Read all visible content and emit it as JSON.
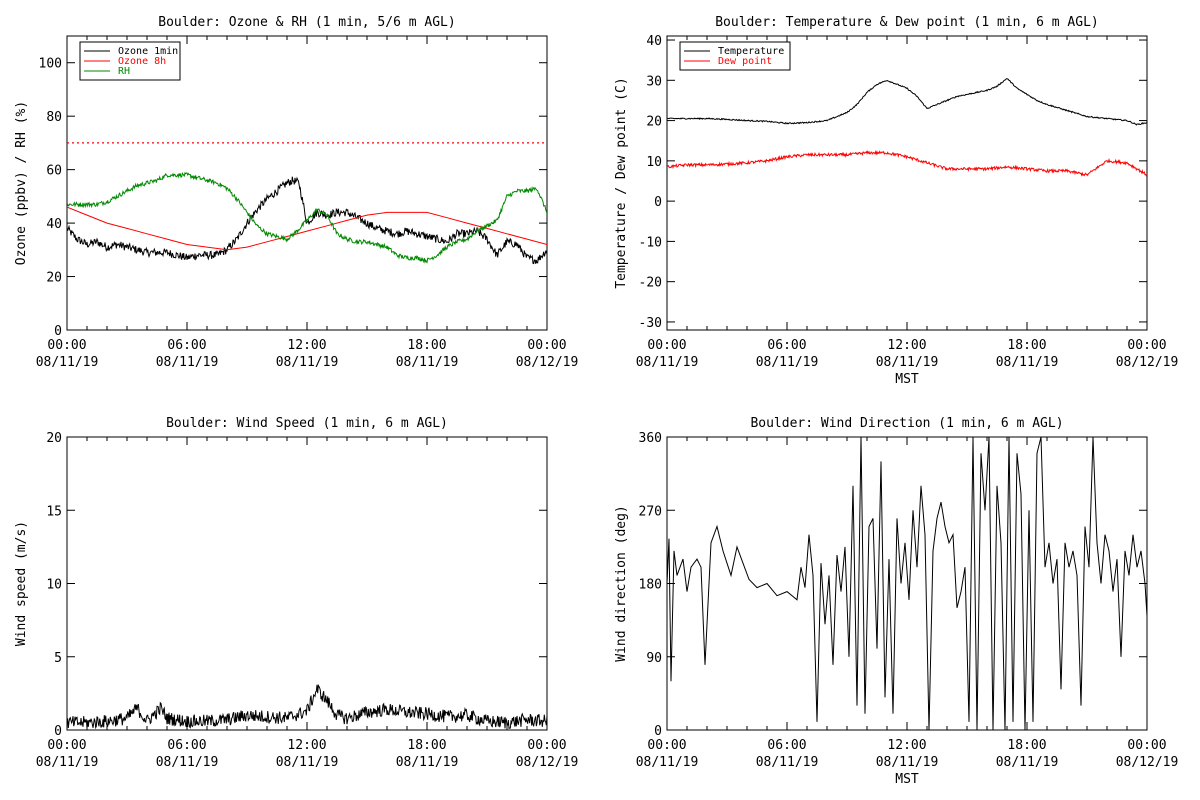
{
  "chart_data": [
    {
      "type": "line",
      "title": "Boulder: Ozone & RH (1 min, 5/6 m AGL)",
      "ylabel": "Ozone (ppbv) / RH (%)",
      "xlabel": "",
      "xlim": [
        0,
        24
      ],
      "ylim": [
        0,
        110
      ],
      "yticks": [
        0,
        20,
        40,
        60,
        80,
        100
      ],
      "xticks": [
        {
          "pos": 0,
          "time": "00:00",
          "date": "08/11/19"
        },
        {
          "pos": 6,
          "time": "06:00",
          "date": "08/11/19"
        },
        {
          "pos": 12,
          "time": "12:00",
          "date": "08/11/19"
        },
        {
          "pos": 18,
          "time": "18:00",
          "date": "08/11/19"
        },
        {
          "pos": 24,
          "time": "00:00",
          "date": "08/12/19"
        }
      ],
      "reference_line": {
        "y": 70,
        "color": "#ff0000",
        "style": "dotted"
      },
      "legend": {
        "placement": "top-left",
        "entries": [
          "Ozone 1min",
          "Ozone 8h",
          "RH"
        ]
      },
      "series": [
        {
          "name": "Ozone 1min",
          "color": "#000000",
          "noise": 1.5,
          "x": [
            0,
            0.5,
            1,
            1.5,
            2,
            2.5,
            3,
            3.5,
            4,
            4.5,
            5,
            5.5,
            6,
            6.5,
            7,
            7.5,
            8,
            8.5,
            9,
            9.5,
            10,
            10.5,
            11,
            11.3,
            11.6,
            12,
            12.5,
            13,
            13.5,
            14,
            14.5,
            15,
            15.5,
            16,
            16.5,
            17,
            17.5,
            18,
            18.5,
            19,
            19.5,
            20,
            20.5,
            21,
            21.5,
            22,
            22.5,
            23,
            23.5,
            24
          ],
          "y": [
            38,
            34,
            32,
            33,
            31,
            32,
            31,
            30,
            29,
            29,
            29,
            28,
            27,
            28,
            28,
            28,
            30,
            34,
            40,
            45,
            49,
            52,
            55,
            56,
            55,
            40,
            44,
            43,
            44,
            44,
            42,
            40,
            38,
            37,
            36,
            37,
            36,
            35,
            34,
            33,
            36,
            36,
            37,
            34,
            28,
            33,
            32,
            27,
            26,
            30
          ]
        },
        {
          "name": "Ozone 8h",
          "color": "#ff0000",
          "noise": 0,
          "x": [
            0,
            1,
            2,
            3,
            4,
            5,
            6,
            7,
            8,
            9,
            10,
            11,
            12,
            13,
            14,
            15,
            16,
            17,
            18,
            19,
            20,
            21,
            22,
            23,
            24
          ],
          "y": [
            46,
            43,
            40,
            38,
            36,
            34,
            32,
            31,
            30,
            31,
            33,
            35,
            37,
            39,
            41,
            43,
            44,
            44,
            44,
            42,
            40,
            38,
            36,
            34,
            32
          ]
        },
        {
          "name": "RH",
          "color": "#008800",
          "noise": 0.8,
          "x": [
            0,
            0.5,
            1,
            1.5,
            2,
            2.5,
            3,
            3.5,
            4,
            4.5,
            5,
            5.5,
            6,
            6.5,
            7,
            7.5,
            8,
            8.5,
            9,
            9.5,
            10,
            10.5,
            11,
            11.5,
            12,
            12.5,
            13,
            13.5,
            14,
            14.5,
            15,
            15.5,
            16,
            16.5,
            17,
            17.5,
            18,
            18.5,
            19,
            19.5,
            20,
            20.5,
            21,
            21.5,
            22,
            22.5,
            23,
            23.5,
            24
          ],
          "y": [
            47,
            47,
            47,
            47,
            48,
            50,
            52,
            54,
            55,
            56,
            58,
            58,
            58,
            57,
            56,
            55,
            53,
            49,
            44,
            39,
            36,
            35,
            34,
            37,
            41,
            45,
            43,
            36,
            34,
            33,
            33,
            32,
            31,
            28,
            27,
            27,
            26,
            28,
            31,
            33,
            34,
            37,
            39,
            41,
            50,
            52,
            52,
            53,
            44
          ]
        }
      ]
    },
    {
      "type": "line",
      "title": "Boulder: Temperature & Dew point (1 min, 6 m AGL)",
      "ylabel": "Temperature / Dew point (C)",
      "xlabel": "MST",
      "xlim": [
        0,
        24
      ],
      "ylim": [
        -32,
        41
      ],
      "yticks": [
        -30,
        -20,
        -10,
        0,
        10,
        20,
        30,
        40
      ],
      "xticks": [
        {
          "pos": 0,
          "time": "00:00",
          "date": "08/11/19"
        },
        {
          "pos": 6,
          "time": "06:00",
          "date": "08/11/19"
        },
        {
          "pos": 12,
          "time": "12:00",
          "date": "08/11/19"
        },
        {
          "pos": 18,
          "time": "18:00",
          "date": "08/11/19"
        },
        {
          "pos": 24,
          "time": "00:00",
          "date": "08/12/19"
        }
      ],
      "legend": {
        "placement": "top-left",
        "entries": [
          "Temperature",
          "Dew point"
        ]
      },
      "series": [
        {
          "name": "Temperature",
          "color": "#000000",
          "noise": 0.15,
          "x": [
            0,
            1,
            2,
            3,
            4,
            5,
            6,
            7,
            8,
            9,
            9.5,
            10,
            10.5,
            11,
            11.5,
            12,
            12.5,
            13,
            13.5,
            14,
            14.5,
            15,
            15.5,
            16,
            16.5,
            17,
            17.5,
            18,
            18.5,
            19,
            20,
            21,
            22,
            23,
            23.5,
            24
          ],
          "y": [
            20.5,
            20.5,
            20.5,
            20.3,
            20,
            19.8,
            19.3,
            19.5,
            20,
            22,
            24,
            27,
            29,
            30,
            29,
            28,
            26,
            23,
            24,
            25,
            26,
            26.5,
            27,
            27.5,
            28.5,
            30.5,
            28,
            26.5,
            25,
            24,
            22.5,
            21,
            20.5,
            20,
            19,
            19.5
          ]
        },
        {
          "name": "Dew point",
          "color": "#ff0000",
          "noise": 0.35,
          "x": [
            0,
            1,
            2,
            3,
            4,
            5,
            6,
            7,
            8,
            9,
            10,
            11,
            12,
            13,
            14,
            15,
            16,
            17,
            18,
            19,
            20,
            21,
            22,
            23,
            24
          ],
          "y": [
            8.5,
            9,
            9,
            9.2,
            9.5,
            10,
            11,
            11.5,
            11.5,
            11.5,
            12,
            12,
            11,
            9.5,
            8,
            8,
            8,
            8.5,
            8,
            7.5,
            7.5,
            6.5,
            10,
            9.5,
            6.5
          ]
        }
      ]
    },
    {
      "type": "line",
      "title": "Boulder: Wind Speed (1 min, 6 m AGL)",
      "ylabel": "Wind speed (m/s)",
      "xlabel": "",
      "xlim": [
        0,
        24
      ],
      "ylim": [
        0,
        20
      ],
      "yticks": [
        0,
        5,
        10,
        15,
        20
      ],
      "xticks": [
        {
          "pos": 0,
          "time": "00:00",
          "date": "08/11/19"
        },
        {
          "pos": 6,
          "time": "06:00",
          "date": "08/11/19"
        },
        {
          "pos": 12,
          "time": "12:00",
          "date": "08/11/19"
        },
        {
          "pos": 18,
          "time": "18:00",
          "date": "08/11/19"
        },
        {
          "pos": 24,
          "time": "00:00",
          "date": "08/12/19"
        }
      ],
      "series": [
        {
          "name": "",
          "color": "#000000",
          "noise": 0.45,
          "x": [
            0,
            1,
            2,
            3,
            3.5,
            4,
            4.7,
            5,
            6,
            7,
            8,
            9,
            10,
            11,
            12,
            12.5,
            13,
            13.5,
            14,
            15,
            16,
            17,
            18,
            19,
            20,
            21,
            22,
            23,
            24
          ],
          "y": [
            0.5,
            0.5,
            0.6,
            0.8,
            1.5,
            0.6,
            1.5,
            0.8,
            0.6,
            0.6,
            0.7,
            1.0,
            0.9,
            0.8,
            1.3,
            2.8,
            2.0,
            1.0,
            0.8,
            1.2,
            1.4,
            1.2,
            1.1,
            0.9,
            1.0,
            0.6,
            0.5,
            0.7,
            0.6
          ]
        }
      ]
    },
    {
      "type": "line",
      "title": "Boulder: Wind Direction (1 min, 6 m AGL)",
      "ylabel": "Wind direction (deg)",
      "xlabel": "MST",
      "xlim": [
        0,
        24
      ],
      "ylim": [
        0,
        360
      ],
      "yticks": [
        0,
        90,
        180,
        270,
        360
      ],
      "xticks": [
        {
          "pos": 0,
          "time": "00:00",
          "date": "08/11/19"
        },
        {
          "pos": 6,
          "time": "06:00",
          "date": "08/11/19"
        },
        {
          "pos": 12,
          "time": "12:00",
          "date": "08/11/19"
        },
        {
          "pos": 18,
          "time": "18:00",
          "date": "08/11/19"
        },
        {
          "pos": 24,
          "time": "00:00",
          "date": "08/12/19"
        }
      ],
      "series": [
        {
          "name": "",
          "color": "#000000",
          "noise": 0,
          "x": [
            0,
            0.1,
            0.2,
            0.35,
            0.5,
            0.8,
            1.0,
            1.2,
            1.5,
            1.7,
            1.9,
            2.2,
            2.5,
            2.8,
            3.0,
            3.2,
            3.5,
            3.8,
            4.1,
            4.5,
            5.0,
            5.5,
            6.0,
            6.5,
            6.7,
            6.9,
            7.1,
            7.3,
            7.5,
            7.7,
            7.9,
            8.1,
            8.3,
            8.5,
            8.7,
            8.9,
            9.1,
            9.3,
            9.5,
            9.7,
            9.9,
            10.1,
            10.3,
            10.5,
            10.7,
            10.9,
            11.1,
            11.3,
            11.5,
            11.7,
            11.9,
            12.1,
            12.3,
            12.5,
            12.7,
            12.9,
            13.1,
            13.3,
            13.5,
            13.7,
            13.9,
            14.1,
            14.3,
            14.5,
            14.7,
            14.9,
            15.1,
            15.3,
            15.5,
            15.7,
            15.9,
            16.1,
            16.3,
            16.5,
            16.7,
            16.9,
            17.1,
            17.3,
            17.5,
            17.7,
            17.9,
            18.1,
            18.3,
            18.5,
            18.7,
            18.9,
            19.1,
            19.3,
            19.5,
            19.7,
            19.9,
            20.1,
            20.3,
            20.5,
            20.7,
            20.9,
            21.1,
            21.3,
            21.5,
            21.7,
            21.9,
            22.1,
            22.3,
            22.5,
            22.7,
            22.9,
            23.1,
            23.3,
            23.5,
            23.7,
            23.9,
            24
          ],
          "y": [
            180,
            235,
            60,
            220,
            190,
            210,
            170,
            200,
            210,
            200,
            80,
            230,
            250,
            220,
            205,
            190,
            225,
            205,
            185,
            175,
            180,
            165,
            170,
            160,
            200,
            175,
            240,
            190,
            10,
            205,
            130,
            190,
            80,
            215,
            170,
            225,
            90,
            300,
            30,
            360,
            20,
            250,
            260,
            100,
            330,
            40,
            210,
            20,
            260,
            180,
            230,
            160,
            270,
            200,
            300,
            240,
            0,
            220,
            260,
            280,
            250,
            230,
            240,
            150,
            170,
            200,
            10,
            360,
            0,
            340,
            270,
            360,
            0,
            300,
            230,
            0,
            360,
            10,
            340,
            290,
            0,
            270,
            10,
            340,
            360,
            200,
            230,
            180,
            210,
            50,
            230,
            200,
            220,
            190,
            30,
            250,
            200,
            360,
            230,
            180,
            240,
            220,
            170,
            210,
            90,
            220,
            190,
            240,
            200,
            220,
            180,
            140
          ]
        }
      ]
    }
  ]
}
